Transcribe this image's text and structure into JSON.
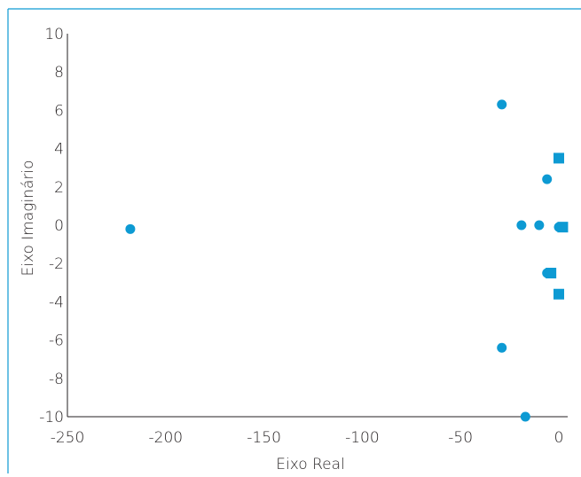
{
  "chart_data": {
    "type": "scatter",
    "title": "",
    "xlabel": "Eixo Real",
    "ylabel": "Eixo Imaginário",
    "xlim": [
      -250,
      0
    ],
    "ylim": [
      -10,
      10
    ],
    "x_ticks": [
      -250,
      -200,
      -150,
      -100,
      -50,
      0
    ],
    "y_ticks": [
      -10,
      -8,
      -6,
      -4,
      -2,
      0,
      2,
      4,
      6,
      8,
      10
    ],
    "grid": false,
    "legend": "none",
    "marker_color": "#0d9ad3",
    "series": [
      {
        "marker": "circle",
        "points": [
          {
            "x": -218,
            "y": -0.2
          },
          {
            "x": -29,
            "y": 6.3
          },
          {
            "x": -29,
            "y": -6.4
          },
          {
            "x": -19,
            "y": 0
          },
          {
            "x": -10,
            "y": 0
          },
          {
            "x": -6,
            "y": 2.4
          },
          {
            "x": -6,
            "y": -2.5
          },
          {
            "x": -17,
            "y": -10
          },
          {
            "x": 0,
            "y": -0.1
          }
        ]
      },
      {
        "marker": "square",
        "points": [
          {
            "x": 0,
            "y": 3.5
          },
          {
            "x": 0,
            "y": -3.6
          },
          {
            "x": -4,
            "y": -2.5
          },
          {
            "x": 2,
            "y": -0.1
          }
        ]
      }
    ]
  }
}
